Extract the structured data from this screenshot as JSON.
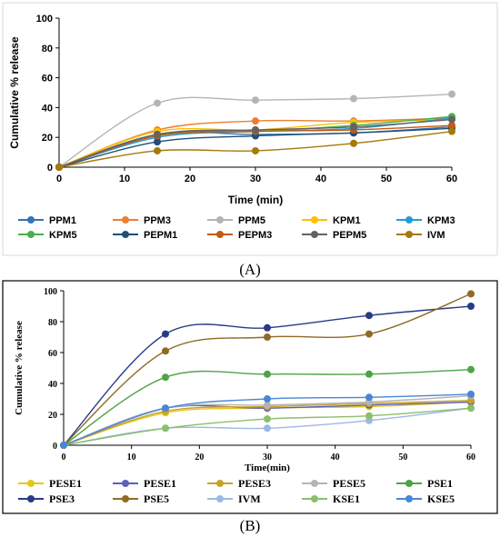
{
  "chart_data": [
    {
      "type": "line",
      "panel_label": "(A)",
      "xlabel": "Time (min)",
      "ylabel": "Cumulative % release",
      "xlim": [
        0,
        60
      ],
      "ylim": [
        0,
        100
      ],
      "xticks": [
        0,
        10,
        20,
        30,
        40,
        50,
        60
      ],
      "yticks": [
        0,
        20,
        40,
        60,
        80,
        100
      ],
      "x": [
        0,
        15,
        30,
        45,
        60
      ],
      "grid": false,
      "legend_position": "bottom",
      "series": [
        {
          "name": "PPM1",
          "color": "#2e75b6",
          "values": [
            0,
            22,
            22,
            23,
            27
          ]
        },
        {
          "name": "PPM3",
          "color": "#ed7d31",
          "values": [
            0,
            25,
            31,
            31,
            33
          ]
        },
        {
          "name": "PPM5",
          "color": "#b4b4b4",
          "values": [
            0,
            43,
            45,
            46,
            49
          ]
        },
        {
          "name": "KPM1",
          "color": "#ffc000",
          "values": [
            0,
            24,
            25,
            30,
            32
          ]
        },
        {
          "name": "KPM3",
          "color": "#1f9fd8",
          "values": [
            0,
            20,
            24,
            26,
            33
          ]
        },
        {
          "name": "KPM5",
          "color": "#4cae4c",
          "values": [
            0,
            22,
            24,
            28,
            34
          ]
        },
        {
          "name": "PEPM1",
          "color": "#1f4e79",
          "values": [
            0,
            17,
            21,
            23,
            26
          ]
        },
        {
          "name": "PEPM3",
          "color": "#c55a11",
          "values": [
            0,
            21,
            24,
            25,
            28
          ]
        },
        {
          "name": "PEPM5",
          "color": "#636363",
          "values": [
            0,
            22,
            25,
            27,
            32
          ]
        },
        {
          "name": "IVM",
          "color": "#a5790a",
          "values": [
            0,
            11,
            11,
            16,
            24
          ]
        }
      ]
    },
    {
      "type": "line",
      "panel_label": "(B)",
      "xlabel": "Time(min)",
      "ylabel": "Cumulative % release",
      "xlim": [
        0,
        60
      ],
      "ylim": [
        0,
        100
      ],
      "xticks": [
        0,
        10,
        20,
        30,
        40,
        50,
        60
      ],
      "yticks": [
        0,
        20,
        40,
        60,
        80,
        100
      ],
      "x": [
        0,
        15,
        30,
        45,
        60
      ],
      "grid": false,
      "legend_position": "bottom",
      "series": [
        {
          "name": "PESE1",
          "color": "#e6c619",
          "values": [
            0,
            21,
            24,
            25,
            28
          ]
        },
        {
          "name": "PESE1",
          "color": "#5b5fbf",
          "values": [
            0,
            24,
            24,
            26,
            28
          ]
        },
        {
          "name": "PESE3",
          "color": "#c9a227",
          "values": [
            0,
            22,
            25,
            27,
            29
          ]
        },
        {
          "name": "PESE5",
          "color": "#b4b4b4",
          "values": [
            0,
            24,
            26,
            28,
            32
          ]
        },
        {
          "name": "PSE1",
          "color": "#4ea346",
          "values": [
            0,
            44,
            46,
            46,
            49
          ]
        },
        {
          "name": "PSE3",
          "color": "#2a3a85",
          "values": [
            0,
            72,
            76,
            84,
            90
          ]
        },
        {
          "name": "PSE5",
          "color": "#8f6b26",
          "values": [
            0,
            61,
            70,
            72,
            98
          ]
        },
        {
          "name": "IVM",
          "color": "#9cb8e6",
          "values": [
            0,
            11,
            11,
            16,
            24
          ]
        },
        {
          "name": "KSE1",
          "color": "#8cbf6a",
          "values": [
            0,
            11,
            17,
            19,
            24
          ]
        },
        {
          "name": "KSE5",
          "color": "#4a86d6",
          "values": [
            0,
            24,
            30,
            31,
            33
          ]
        }
      ]
    }
  ]
}
